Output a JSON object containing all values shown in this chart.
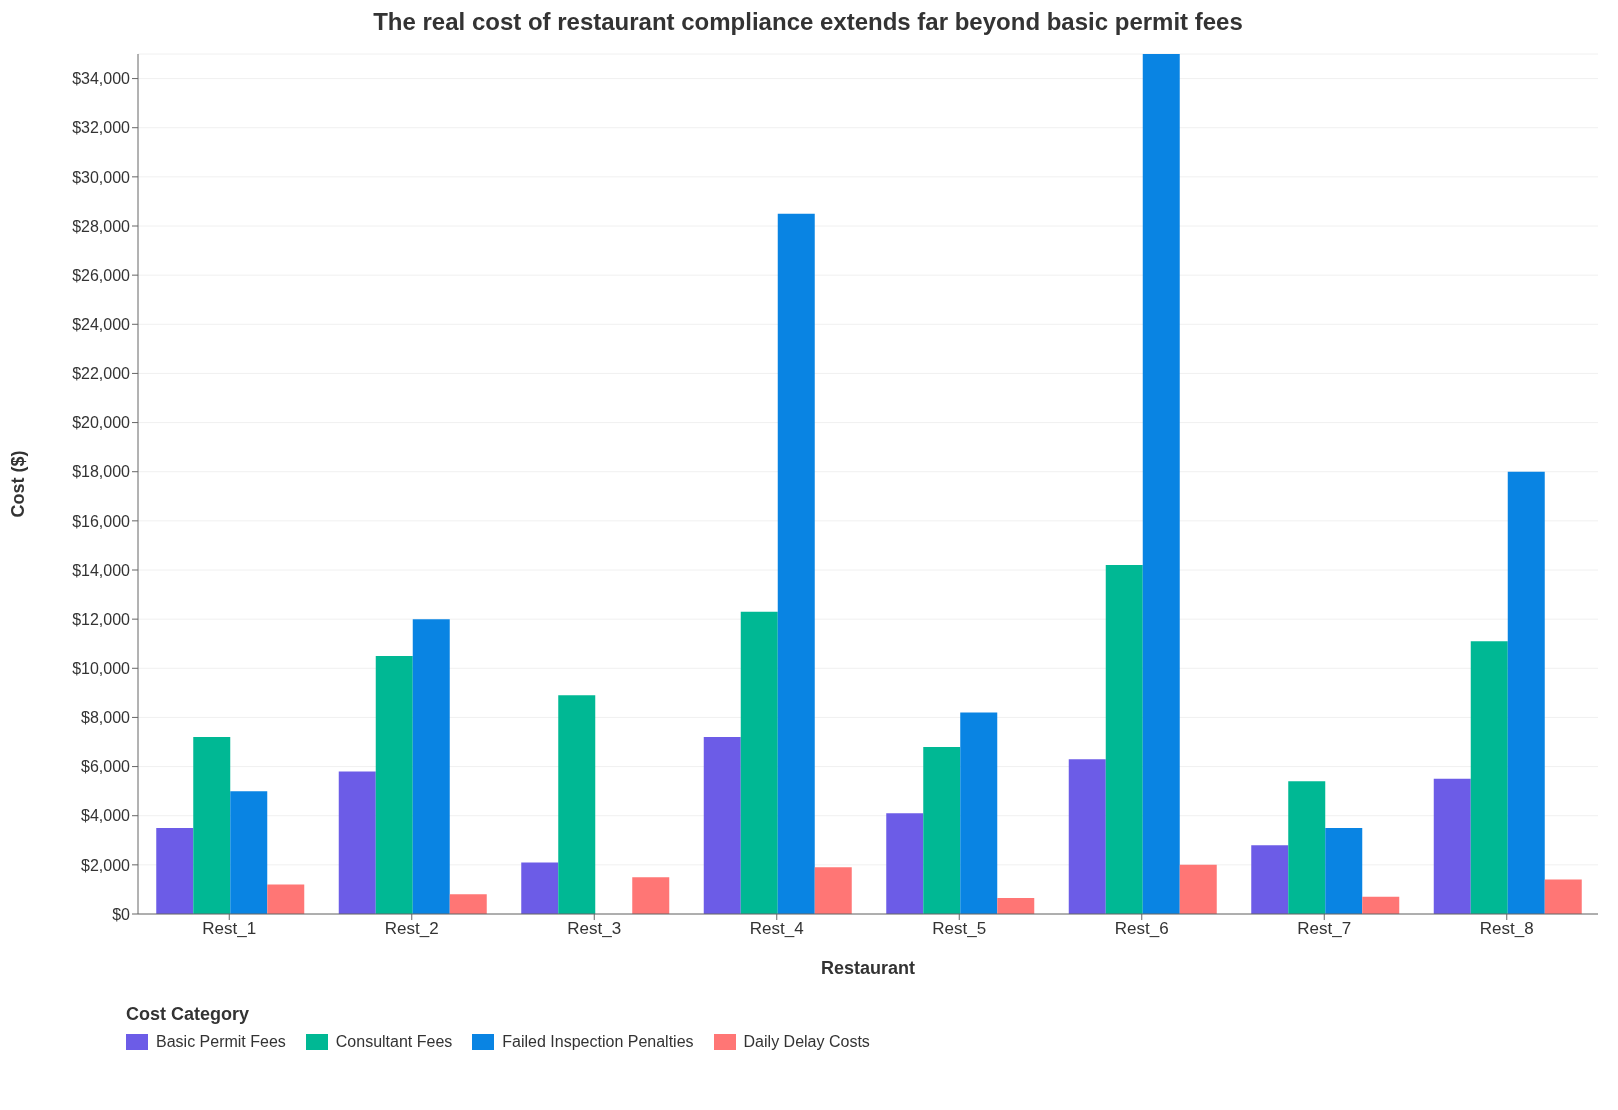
{
  "chart_data": {
    "type": "bar",
    "title": "The real cost of restaurant compliance extends far beyond basic permit fees",
    "xlabel": "Restaurant",
    "ylabel": "Cost ($)",
    "legend_title": "Cost Category",
    "categories": [
      "Rest_1",
      "Rest_2",
      "Rest_3",
      "Rest_4",
      "Rest_5",
      "Rest_6",
      "Rest_7",
      "Rest_8"
    ],
    "series": [
      {
        "name": "Basic Permit Fees",
        "color": "#6c5ce7",
        "values": [
          3500,
          5800,
          2100,
          7200,
          4100,
          6300,
          2800,
          5500
        ]
      },
      {
        "name": "Consultant Fees",
        "color": "#00b894",
        "values": [
          7200,
          10500,
          8900,
          12300,
          6800,
          14200,
          5400,
          11100
        ]
      },
      {
        "name": "Failed Inspection Penalties",
        "color": "#0984e3",
        "values": [
          5000,
          12000,
          0,
          28500,
          8200,
          35000,
          3500,
          18000
        ]
      },
      {
        "name": "Daily Delay Costs",
        "color": "#ff7675",
        "values": [
          1200,
          800,
          1500,
          1900,
          650,
          2000,
          700,
          1400
        ]
      }
    ],
    "ylim": [
      0,
      35000
    ],
    "yticks": [
      {
        "value": 0,
        "label": "$0"
      },
      {
        "value": 2000,
        "label": "$2,000"
      },
      {
        "value": 4000,
        "label": "$4,000"
      },
      {
        "value": 6000,
        "label": "$6,000"
      },
      {
        "value": 8000,
        "label": "$8,000"
      },
      {
        "value": 10000,
        "label": "$10,000"
      },
      {
        "value": 12000,
        "label": "$12,000"
      },
      {
        "value": 14000,
        "label": "$14,000"
      },
      {
        "value": 16000,
        "label": "$16,000"
      },
      {
        "value": 18000,
        "label": "$18,000"
      },
      {
        "value": 20000,
        "label": "$20,000"
      },
      {
        "value": 22000,
        "label": "$22,000"
      },
      {
        "value": 24000,
        "label": "$24,000"
      },
      {
        "value": 26000,
        "label": "$26,000"
      },
      {
        "value": 28000,
        "label": "$28,000"
      },
      {
        "value": 30000,
        "label": "$30,000"
      },
      {
        "value": 32000,
        "label": "$32,000"
      },
      {
        "value": 34000,
        "label": "$34,000"
      }
    ],
    "grid": "y",
    "legend": "bottom left"
  }
}
